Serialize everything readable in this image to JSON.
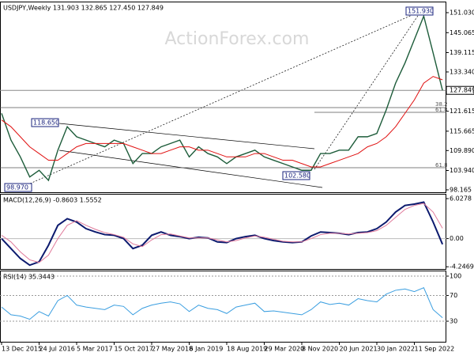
{
  "chart_data": [
    {
      "type": "line",
      "title": "USDJPY,Weekly  131.903 132.865 127.450 127.849",
      "series": [
        {
          "name": "USDJPY",
          "color": "#1d5c3a",
          "values": [
            121,
            113,
            108,
            102,
            104,
            101,
            110,
            117,
            114,
            113,
            112,
            111,
            113,
            112,
            106,
            109,
            109,
            111,
            112,
            113,
            108,
            111,
            109,
            108,
            106,
            108,
            109,
            110,
            108,
            107,
            106,
            105,
            104,
            104,
            109,
            109,
            110,
            110,
            114,
            114,
            115,
            122,
            130,
            136,
            143,
            150,
            139,
            127.849
          ]
        },
        {
          "name": "MA",
          "color": "#e01010",
          "values": [
            119,
            117,
            114,
            111,
            109,
            107,
            107,
            109,
            111,
            112,
            112,
            112,
            112,
            112,
            111,
            110,
            109,
            109,
            110,
            111,
            111,
            110,
            110,
            109,
            108,
            108,
            108,
            109,
            109,
            108,
            107,
            107,
            106,
            105,
            105,
            106,
            107,
            108,
            109,
            111,
            112,
            114,
            117,
            121,
            125,
            130,
            132,
            131
          ]
        }
      ],
      "ylim": [
        97.45,
        154.1
      ],
      "yticks": [
        98.165,
        {
          "value": 103.94,
          "label": "103.940"
        },
        {
          "value": 109.89,
          "label": "109.890"
        },
        115.665,
        121.615,
        {
          "value": 133.34,
          "label": "133.340"
        },
        139.115,
        145.065,
        {
          "value": 151.03,
          "label": "151.030"
        }
      ],
      "last_price": 127.849,
      "annotations": [
        "151.930",
        "118.650",
        "98.970",
        "102.580",
        "38.2",
        "61.8",
        "61.8"
      ]
    },
    {
      "type": "line",
      "title": "MACD(12,26,9) -0.8603 1.5552",
      "series": [
        {
          "name": "MACD",
          "color": "#0c1a6e",
          "values": [
            0,
            -1.5,
            -3,
            -4,
            -3.5,
            -1,
            2,
            3,
            2.5,
            1.5,
            1,
            0.6,
            0.5,
            0,
            -1.5,
            -1,
            0.5,
            1,
            0.5,
            0.3,
            0,
            0.2,
            0.1,
            -0.5,
            -0.6,
            0,
            0.3,
            0.5,
            0,
            -0.3,
            -0.5,
            -0.6,
            -0.5,
            0.4,
            1,
            0.9,
            0.8,
            0.6,
            0.9,
            1,
            1.5,
            2.5,
            4,
            5,
            5.2,
            5.5,
            2.5,
            -0.8603
          ]
        },
        {
          "name": "Signal",
          "color": "#e07a9a",
          "values": [
            0.5,
            -0.5,
            -2,
            -3.2,
            -3.6,
            -2.5,
            0,
            2,
            2.7,
            2,
            1.4,
            0.9,
            0.6,
            0.2,
            -0.8,
            -1.2,
            -0.2,
            0.6,
            0.7,
            0.4,
            0.1,
            0.1,
            0.1,
            -0.2,
            -0.5,
            -0.3,
            0.1,
            0.4,
            0.2,
            -0.1,
            -0.4,
            -0.5,
            -0.5,
            0,
            0.6,
            0.8,
            0.8,
            0.7,
            0.8,
            0.9,
            1.2,
            2,
            3.2,
            4.4,
            5,
            5.3,
            4,
            1.5552
          ]
        }
      ],
      "ylim": [
        -4.58,
        6.63
      ],
      "yticks": [
        6.0278,
        {
          "value": 0,
          "label": "0.00"
        },
        -4.2469
      ]
    },
    {
      "type": "line",
      "title": "RSI(14) 35.3443",
      "series": [
        {
          "name": "RSI",
          "color": "#3a9ee0",
          "values": [
            52,
            40,
            38,
            33,
            45,
            38,
            62,
            70,
            55,
            52,
            50,
            48,
            55,
            53,
            40,
            50,
            55,
            58,
            60,
            57,
            45,
            55,
            50,
            48,
            42,
            52,
            55,
            58,
            45,
            46,
            44,
            42,
            40,
            48,
            60,
            56,
            58,
            55,
            65,
            62,
            60,
            72,
            78,
            80,
            76,
            82,
            48,
            35.3443
          ]
        }
      ],
      "ylim": [
        -1.9,
        107.4
      ],
      "yticks": [
        100,
        70,
        30
      ],
      "categories": [
        "13 Dec 2015",
        null,
        null,
        null,
        "24 Jul 2016",
        null,
        null,
        null,
        "5 Mar 2017",
        null,
        null,
        null,
        "15 Oct 2017",
        null,
        null,
        null,
        "27 May 2018",
        null,
        null,
        null,
        "6 Jan 2019",
        null,
        null,
        null,
        "18 Aug 2019",
        null,
        null,
        null,
        "29 Mar 2020",
        null,
        null,
        null,
        "8 Nov 2020",
        null,
        null,
        null,
        "20 Jun 2021",
        null,
        null,
        null,
        "30 Jan 2022",
        null,
        null,
        null,
        "11 Sep 2022",
        null,
        null,
        null
      ]
    }
  ],
  "watermark": "ActionForex.com"
}
